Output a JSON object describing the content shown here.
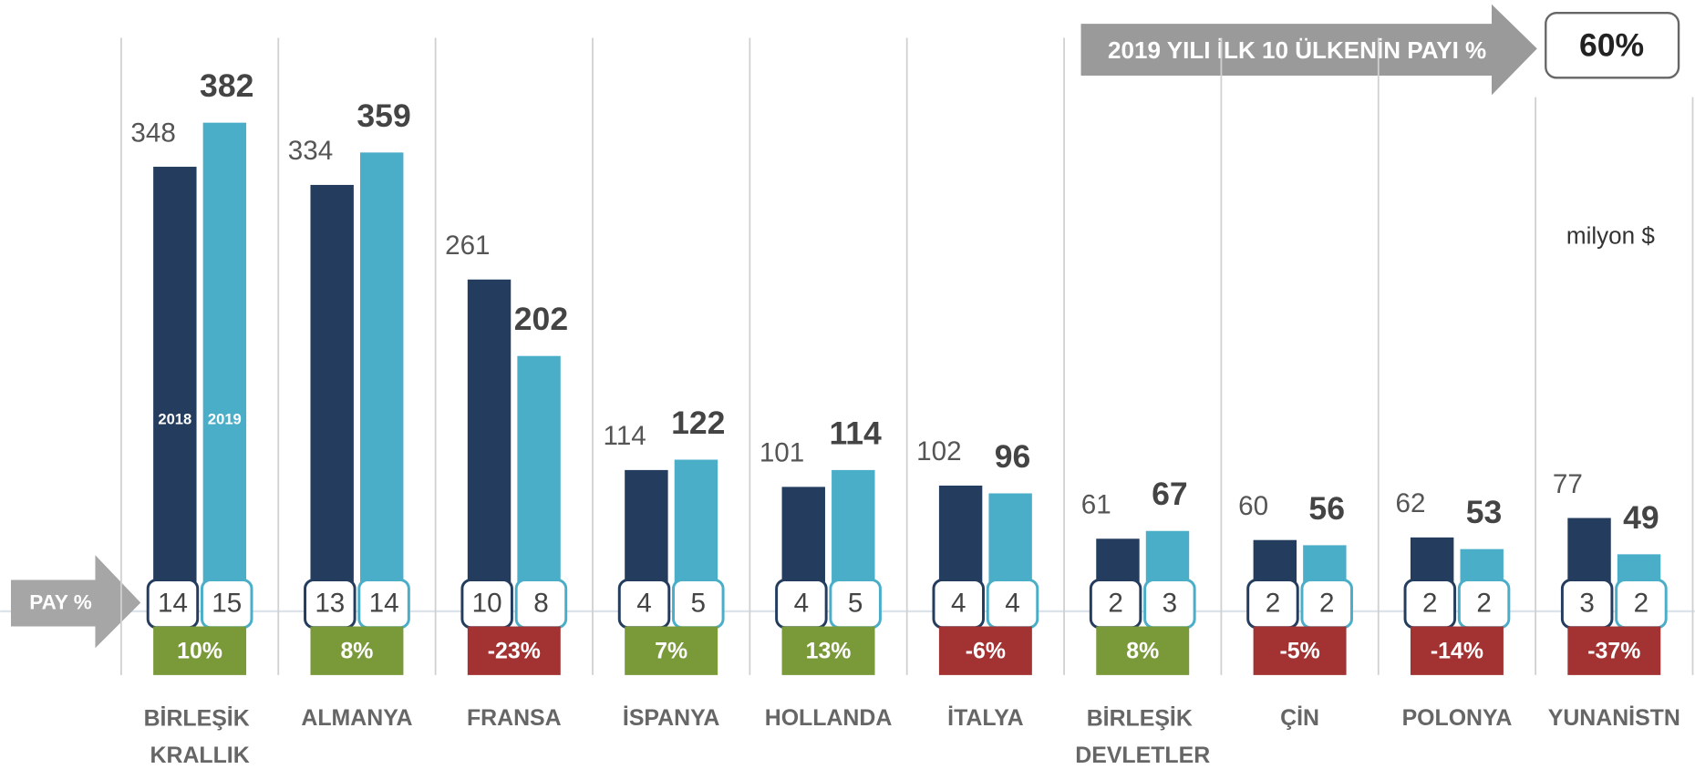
{
  "chart_data": {
    "type": "bar",
    "title": "2019 YILI İLK 10 ÜLKENİN PAYI %",
    "top10_share": {
      "value": 60,
      "label": "60%"
    },
    "unit_label": "milyon $",
    "share_label": "PAY %",
    "categories": [
      "BİRLEŞİK KRALLIK",
      "ALMANYA",
      "FRANSA",
      "İSPANYA",
      "HOLLANDA",
      "İTALYA",
      "BİRLEŞİK DEVLETLER",
      "ÇİN",
      "POLONYA",
      "YUNANİSTN"
    ],
    "series": [
      {
        "name": "2018",
        "color": "#243d5e",
        "values": [
          348,
          334,
          261,
          114,
          101,
          102,
          61,
          60,
          62,
          77
        ],
        "shares": [
          14,
          13,
          10,
          4,
          4,
          4,
          2,
          2,
          2,
          3
        ]
      },
      {
        "name": "2019",
        "color": "#4aaec8",
        "values": [
          382,
          359,
          202,
          122,
          114,
          96,
          67,
          56,
          53,
          49
        ],
        "shares": [
          15,
          14,
          8,
          5,
          5,
          4,
          3,
          2,
          2,
          2
        ]
      }
    ],
    "change": {
      "values": [
        10,
        8,
        -23,
        7,
        13,
        -6,
        8,
        -5,
        -14,
        -37
      ],
      "value_labels": [
        "10%",
        "8%",
        "-23%",
        "7%",
        "13%",
        "-6%",
        "8%",
        "-5%",
        "-14%",
        "-37%"
      ],
      "positive_color": "#7a9a3a",
      "negative_color": "#a33232"
    },
    "ylim": [
      0,
      470
    ]
  }
}
